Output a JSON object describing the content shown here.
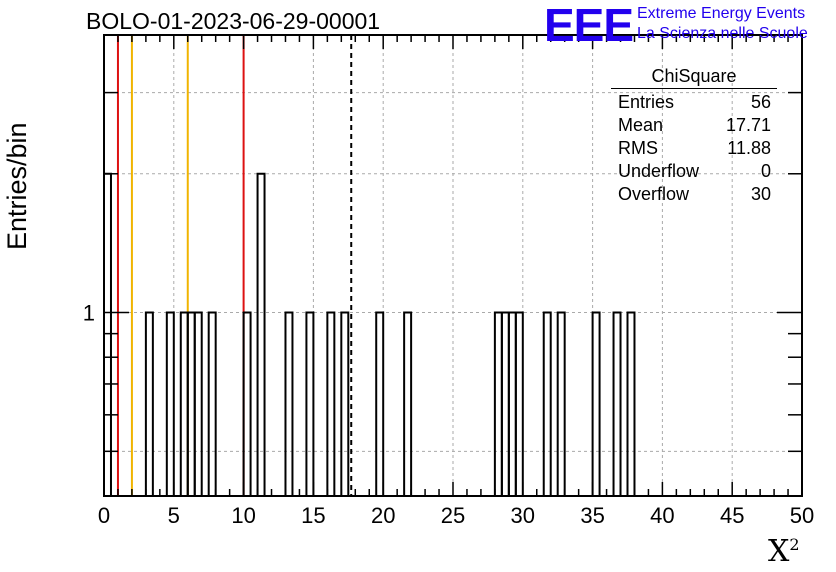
{
  "header": {
    "title": "BOLO-01-2023-06-29-00001"
  },
  "logo": {
    "mark": "EEE",
    "line1": "Extreme Energy Events",
    "line2": "La Scienza nelle Scuole"
  },
  "stats": {
    "title": "ChiSquare",
    "rows": [
      {
        "label": "Entries",
        "value": "56"
      },
      {
        "label": "Mean",
        "value": "17.71"
      },
      {
        "label": "RMS",
        "value": "11.88"
      },
      {
        "label": "Underflow",
        "value": "0"
      },
      {
        "label": "Overflow",
        "value": "30"
      }
    ]
  },
  "chart_data": {
    "type": "histogram",
    "xlabel": "X²",
    "ylabel": "Entries/bin",
    "xlim": [
      0,
      50
    ],
    "ylim": [
      0.4,
      4
    ],
    "yscale": "log",
    "grid": true,
    "bin_width": 0.5,
    "x_ticks": [
      0,
      5,
      10,
      15,
      20,
      25,
      30,
      35,
      40,
      45,
      50
    ],
    "y_ticks": [
      1
    ],
    "bins": [
      {
        "x": 0.0,
        "y": 2
      },
      {
        "x": 3.0,
        "y": 1
      },
      {
        "x": 4.5,
        "y": 1
      },
      {
        "x": 5.5,
        "y": 1
      },
      {
        "x": 6.0,
        "y": 1
      },
      {
        "x": 6.5,
        "y": 1
      },
      {
        "x": 7.5,
        "y": 1
      },
      {
        "x": 10.0,
        "y": 1
      },
      {
        "x": 11.0,
        "y": 2
      },
      {
        "x": 13.0,
        "y": 1
      },
      {
        "x": 14.5,
        "y": 1
      },
      {
        "x": 16.0,
        "y": 1
      },
      {
        "x": 17.0,
        "y": 1
      },
      {
        "x": 19.5,
        "y": 1
      },
      {
        "x": 21.5,
        "y": 1
      },
      {
        "x": 28.0,
        "y": 1
      },
      {
        "x": 28.5,
        "y": 1
      },
      {
        "x": 29.0,
        "y": 1
      },
      {
        "x": 29.5,
        "y": 1
      },
      {
        "x": 31.5,
        "y": 1
      },
      {
        "x": 32.5,
        "y": 1
      },
      {
        "x": 35.0,
        "y": 1
      },
      {
        "x": 36.5,
        "y": 1
      },
      {
        "x": 37.5,
        "y": 1
      }
    ],
    "vertical_lines": [
      {
        "x": 1,
        "color": "#dd1111",
        "style": "solid"
      },
      {
        "x": 2,
        "color": "#f0b400",
        "style": "solid"
      },
      {
        "x": 6,
        "color": "#f0b400",
        "style": "solid"
      },
      {
        "x": 10,
        "color": "#dd1111",
        "style": "solid"
      },
      {
        "x": 17.71,
        "color": "#000000",
        "style": "dashed"
      }
    ]
  }
}
